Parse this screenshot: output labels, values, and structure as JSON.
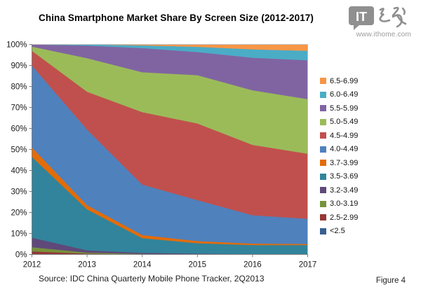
{
  "header": {
    "title": "China Smartphone Market Share By Screen Size (2012-2017)"
  },
  "logo": {
    "text": "IT",
    "website": "www.ithome.com"
  },
  "footer": {
    "source": "Source: IDC China Quarterly Mobile Phone Tracker, 2Q2013",
    "figure_label": "Figure 4"
  },
  "chart_data": {
    "type": "area",
    "stacked": true,
    "title": "China Smartphone Market Share By Screen Size (2012-2017)",
    "x": [
      "2012",
      "2013",
      "2014",
      "2015",
      "2016",
      "2017"
    ],
    "xlabel": "",
    "ylabel": "",
    "ylim": [
      0,
      100
    ],
    "y_tick_labels": [
      "0%",
      "10%",
      "20%",
      "30%",
      "40%",
      "50%",
      "60%",
      "70%",
      "80%",
      "90%",
      "100%"
    ],
    "grid": true,
    "legend_position": "right",
    "series": [
      {
        "name": "<2.5",
        "color": "#366092",
        "values": [
          0.3,
          0.1,
          0.0,
          0.0,
          0.0,
          0.0
        ]
      },
      {
        "name": "2.5-2.99",
        "color": "#953735",
        "values": [
          1.2,
          0.3,
          0.1,
          0.0,
          0.0,
          0.0
        ]
      },
      {
        "name": "3.0-3.19",
        "color": "#76923C",
        "values": [
          2.0,
          0.5,
          0.2,
          0.1,
          0.0,
          0.0
        ]
      },
      {
        "name": "3.2-3.49",
        "color": "#5F497A",
        "values": [
          4.5,
          1.1,
          0.5,
          0.3,
          0.2,
          0.1
        ]
      },
      {
        "name": "3.5-3.69",
        "color": "#31849B",
        "values": [
          38.5,
          19.5,
          7.0,
          5.0,
          4.3,
          4.4
        ]
      },
      {
        "name": "3.7-3.99",
        "color": "#E36C09",
        "values": [
          4.5,
          2.0,
          1.5,
          1.0,
          0.7,
          0.5
        ]
      },
      {
        "name": "4.0-4.49",
        "color": "#4F81BD",
        "values": [
          39.0,
          36.0,
          24.0,
          19.5,
          13.5,
          12.0
        ]
      },
      {
        "name": "4.5-4.99",
        "color": "#C0504D",
        "values": [
          7.0,
          18.0,
          34.5,
          36.5,
          33.5,
          31.0
        ]
      },
      {
        "name": "5.0-5.49",
        "color": "#9BBB59",
        "values": [
          2.0,
          16.0,
          19.0,
          23.0,
          26.0,
          26.0
        ]
      },
      {
        "name": "5.5-5.99",
        "color": "#8064A2",
        "values": [
          1.0,
          6.0,
          11.5,
          11.0,
          15.5,
          18.5
        ]
      },
      {
        "name": "6.0-6.49",
        "color": "#4BACC6",
        "values": [
          0.0,
          0.5,
          1.3,
          2.5,
          4.0,
          4.5
        ]
      },
      {
        "name": "6.5-6.99",
        "color": "#F79646",
        "values": [
          0.0,
          0.0,
          0.4,
          1.1,
          2.3,
          3.0
        ]
      }
    ]
  }
}
